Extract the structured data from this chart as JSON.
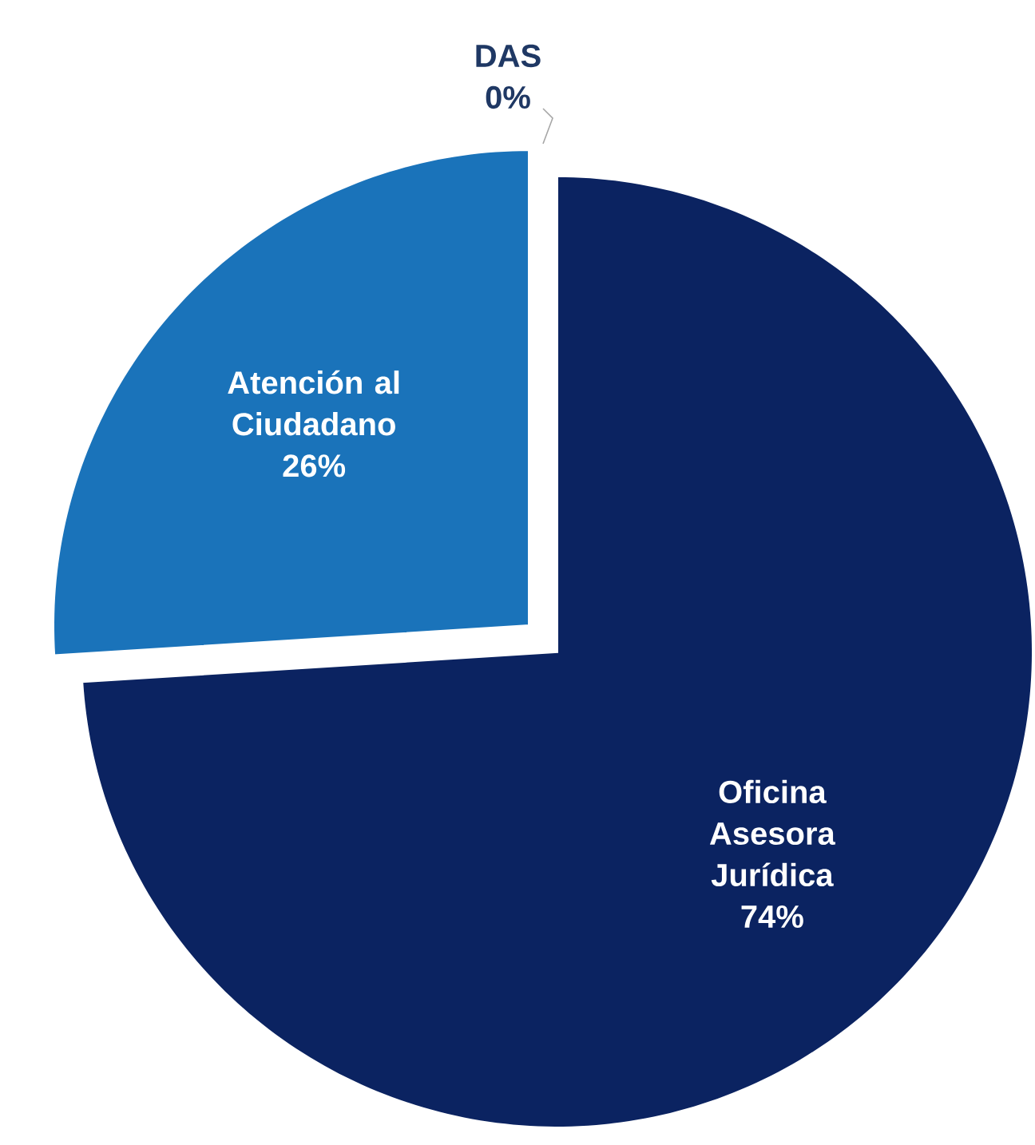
{
  "chart_data": {
    "type": "pie",
    "categories": [
      "Oficina Asesora Jurídica",
      "Atención al Ciudadano",
      "DAS"
    ],
    "values": [
      74,
      26,
      0
    ],
    "colors": [
      "#0b2361",
      "#1a73ba",
      "#ffffff"
    ],
    "value_labels": [
      "74%",
      "26%",
      "0%"
    ]
  }
}
